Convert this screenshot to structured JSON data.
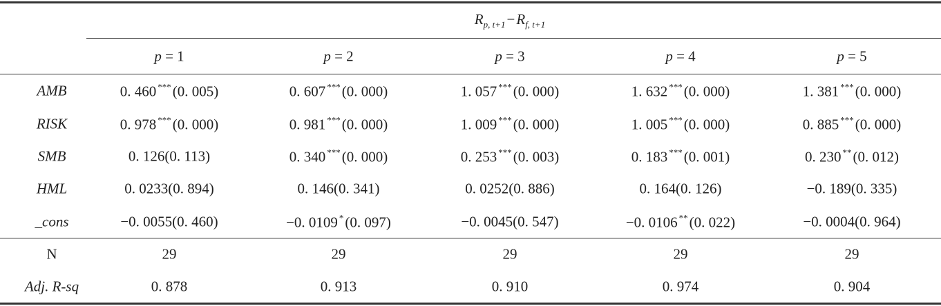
{
  "table": {
    "header": {
      "left": "R",
      "left_sub": "p, t+1",
      "minus": "−",
      "right": "R",
      "right_sub": "f, t+1"
    },
    "columns": [
      {
        "symbol": "p",
        "label": "= 1"
      },
      {
        "symbol": "p",
        "label": "= 2"
      },
      {
        "symbol": "p",
        "label": "= 3"
      },
      {
        "symbol": "p",
        "label": "= 4"
      },
      {
        "symbol": "p",
        "label": "= 5"
      }
    ],
    "rows": [
      {
        "label": "AMB",
        "italic": true,
        "cells": [
          {
            "value": "0. 460",
            "stars": "***",
            "p": "(0. 005)"
          },
          {
            "value": "0. 607",
            "stars": "***",
            "p": "(0. 000)"
          },
          {
            "value": "1. 057",
            "stars": "***",
            "p": "(0. 000)"
          },
          {
            "value": "1. 632",
            "stars": "***",
            "p": "(0. 000)"
          },
          {
            "value": "1. 381",
            "stars": "***",
            "p": "(0. 000)"
          }
        ]
      },
      {
        "label": "RISK",
        "italic": true,
        "cells": [
          {
            "value": "0. 978",
            "stars": "***",
            "p": "(0. 000)"
          },
          {
            "value": "0. 981",
            "stars": "***",
            "p": "(0. 000)"
          },
          {
            "value": "1. 009",
            "stars": "***",
            "p": "(0. 000)"
          },
          {
            "value": "1. 005",
            "stars": "***",
            "p": "(0. 000)"
          },
          {
            "value": "0. 885",
            "stars": "***",
            "p": "(0. 000)"
          }
        ]
      },
      {
        "label": "SMB",
        "italic": true,
        "cells": [
          {
            "value": "0. 126",
            "p": "(0. 113)"
          },
          {
            "value": "0. 340",
            "stars": "***",
            "p": "(0. 000)"
          },
          {
            "value": "0. 253",
            "stars": "***",
            "p": "(0. 003)"
          },
          {
            "value": "0. 183",
            "stars": "***",
            "p": "(0. 001)"
          },
          {
            "value": "0. 230",
            "stars": "**",
            "p": "(0. 012)"
          }
        ]
      },
      {
        "label": "HML",
        "italic": true,
        "cells": [
          {
            "value": "0. 0233",
            "p": "(0. 894)"
          },
          {
            "value": "0. 146",
            "p": "(0. 341)"
          },
          {
            "value": "0. 0252",
            "p": "(0. 886)"
          },
          {
            "value": "0. 164",
            "p": "(0. 126)"
          },
          {
            "value": "−0. 189",
            "p": "(0. 335)"
          }
        ]
      },
      {
        "label": "_cons",
        "italic": true,
        "cells": [
          {
            "value": "−0. 0055",
            "p": "(0. 460)"
          },
          {
            "value": "−0. 0109",
            "stars": "*",
            "p": "(0. 097)"
          },
          {
            "value": "−0. 0045",
            "p": "(0. 547)"
          },
          {
            "value": "−0. 0106",
            "stars": "**",
            "p": "(0. 022)"
          },
          {
            "value": "−0. 0004",
            "p": "(0. 964)"
          }
        ]
      }
    ],
    "stats": [
      {
        "label": "N",
        "italic": false,
        "cells": [
          "29",
          "29",
          "29",
          "29",
          "29"
        ]
      },
      {
        "label": "Adj. R-sq",
        "italic": true,
        "cells": [
          "0. 878",
          "0. 913",
          "0. 910",
          "0. 974",
          "0. 904"
        ]
      }
    ]
  }
}
